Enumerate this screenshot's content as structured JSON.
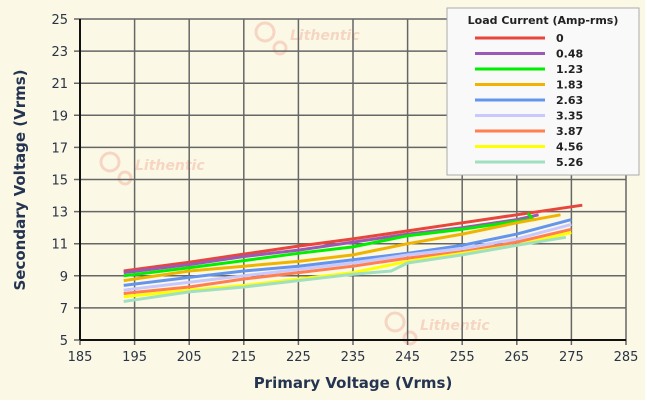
{
  "chart_data": {
    "type": "line",
    "xlabel": "Primary Voltage (Vrms)",
    "ylabel": "Secondary Voltage (Vrms)",
    "xlim": [
      185,
      285
    ],
    "ylim": [
      5,
      25
    ],
    "xticks": [
      185,
      195,
      205,
      215,
      225,
      235,
      245,
      255,
      265,
      275,
      285
    ],
    "yticks": [
      5,
      7,
      9,
      11,
      13,
      15,
      17,
      19,
      21,
      23,
      25
    ],
    "grid": true,
    "legend": {
      "title": "Load Current (Amp-rms)",
      "placement": "top-right"
    },
    "series": [
      {
        "name": "0",
        "color": "#e8453c",
        "x": [
          193,
          205,
          215,
          225,
          235,
          245,
          255,
          265,
          277
        ],
        "y": [
          9.3,
          9.85,
          10.35,
          10.85,
          11.3,
          11.8,
          12.3,
          12.8,
          13.4
        ]
      },
      {
        "name": "0.48",
        "color": "#9b59b6",
        "x": [
          193,
          205,
          215,
          225,
          235,
          245,
          255,
          265,
          269
        ],
        "y": [
          9.2,
          9.7,
          10.2,
          10.6,
          11.1,
          11.6,
          12.0,
          12.5,
          12.8
        ]
      },
      {
        "name": "1.23",
        "color": "#00ee00",
        "x": [
          193,
          205,
          215,
          225,
          235,
          245,
          255,
          265,
          268,
          267
        ],
        "y": [
          9.0,
          9.5,
          9.95,
          10.4,
          10.8,
          11.5,
          11.9,
          12.4,
          12.5,
          12.9
        ]
      },
      {
        "name": "1.83",
        "color": "#f0b400",
        "x": [
          193,
          205,
          215,
          225,
          235,
          245,
          255,
          265,
          273
        ],
        "y": [
          8.7,
          9.3,
          9.6,
          9.9,
          10.3,
          11.0,
          11.6,
          12.3,
          12.8
        ]
      },
      {
        "name": "2.63",
        "color": "#6495ed",
        "x": [
          193,
          205,
          215,
          225,
          235,
          245,
          255,
          265,
          275
        ],
        "y": [
          8.4,
          8.9,
          9.3,
          9.6,
          10.0,
          10.4,
          10.9,
          11.6,
          12.5
        ]
      },
      {
        "name": "3.35",
        "color": "#c8c8ff",
        "x": [
          193,
          205,
          215,
          225,
          235,
          245,
          255,
          265,
          275
        ],
        "y": [
          8.1,
          8.6,
          9.0,
          9.4,
          9.8,
          10.3,
          10.7,
          11.3,
          12.2
        ]
      },
      {
        "name": "3.87",
        "color": "#ff7f50",
        "x": [
          193,
          205,
          215,
          225,
          235,
          245,
          255,
          265,
          275
        ],
        "y": [
          7.9,
          8.3,
          8.8,
          9.2,
          9.6,
          10.1,
          10.5,
          11.1,
          11.9
        ]
      },
      {
        "name": "4.56",
        "color": "#ffff00",
        "x": [
          193,
          205,
          215,
          225,
          235,
          245,
          255,
          265,
          275
        ],
        "y": [
          7.7,
          8.1,
          8.4,
          8.8,
          9.2,
          9.9,
          10.4,
          10.9,
          11.7
        ]
      },
      {
        "name": "5.26",
        "color": "#a0e0c0",
        "x": [
          193,
          205,
          215,
          225,
          235,
          242,
          245,
          255,
          265,
          274
        ],
        "y": [
          7.4,
          8.0,
          8.3,
          8.7,
          9.1,
          9.3,
          9.8,
          10.3,
          10.9,
          11.4
        ]
      }
    ]
  },
  "watermark": "Lithentic"
}
